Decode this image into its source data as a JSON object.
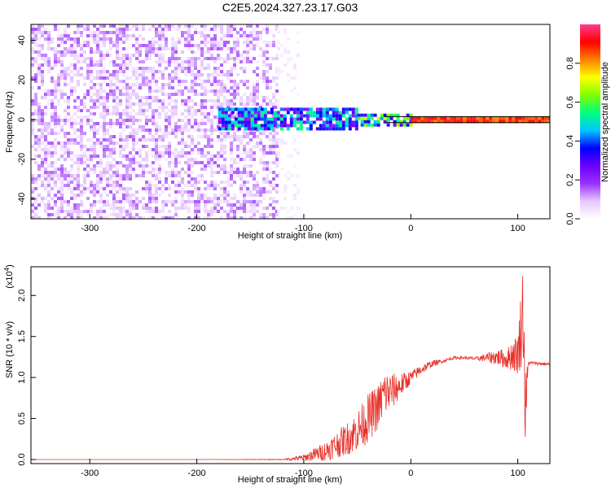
{
  "title": "C2E5.2024.327.23.17.G03",
  "chart_data": [
    {
      "type": "heatmap",
      "xlabel": "Height of straight line (km)",
      "ylabel": "Frequency (Hz)",
      "xlim": [
        -355,
        130
      ],
      "ylim": [
        -50,
        48
      ],
      "xticks": [
        -300,
        -200,
        -100,
        0,
        100
      ],
      "yticks": [
        -40,
        -20,
        0,
        20,
        40
      ],
      "colorbar": {
        "label": "Normalized spectral amplitude",
        "range": [
          0.0,
          1.0
        ],
        "ticks": [
          0.0,
          0.2,
          0.4,
          0.6,
          0.8
        ],
        "colormap": [
          "#ffffff",
          "#e6c8ff",
          "#9b30ff",
          "#6a00ff",
          "#0000ff",
          "#00c8ff",
          "#00ff80",
          "#80ff00",
          "#ffff00",
          "#ff8000",
          "#ff0000",
          "#ff3c8c"
        ]
      },
      "regions": [
        {
          "x_range": [
            -355,
            -125
          ],
          "freq_range": [
            -50,
            48
          ],
          "amplitude": 0.08,
          "pattern": "noise"
        },
        {
          "x_range": [
            -125,
            -105
          ],
          "freq_range": [
            -50,
            48
          ],
          "amplitude": 0.03,
          "pattern": "sparse-noise"
        },
        {
          "x_range": [
            -180,
            -50
          ],
          "freq_range": [
            -4,
            6
          ],
          "amplitude": 0.4,
          "pattern": "band"
        },
        {
          "x_range": [
            -50,
            0
          ],
          "freq_range": [
            -2,
            3
          ],
          "amplitude": 0.5,
          "pattern": "band"
        },
        {
          "x_range": [
            0,
            130
          ],
          "freq_range": [
            -1.5,
            1.5
          ],
          "amplitude": 0.9,
          "pattern": "line"
        }
      ]
    },
    {
      "type": "line",
      "xlabel": "Height of straight line (km)",
      "ylabel": "SNR (10 * v/v)",
      "y_multiplier": "(x10",
      "y_multiplier_exp": "4",
      "xlim": [
        -355,
        130
      ],
      "ylim": [
        -0.05,
        2.35
      ],
      "xticks": [
        -300,
        -200,
        -100,
        0,
        100
      ],
      "yticks": [
        0.0,
        0.5,
        1.0,
        1.5,
        2.0
      ],
      "series": [
        {
          "color": "#e8302a",
          "x": [
            -355,
            -300,
            -200,
            -120,
            -100,
            -80,
            -60,
            -50,
            -40,
            -30,
            -25,
            -20,
            -15,
            -10,
            -5,
            0,
            10,
            20,
            30,
            40,
            50,
            60,
            70,
            80,
            90,
            95,
            100,
            103,
            105,
            107,
            110,
            120,
            130
          ],
          "y": [
            0.0,
            0.0,
            0.0,
            0.0,
            0.02,
            0.1,
            0.25,
            0.35,
            0.5,
            0.65,
            0.8,
            0.82,
            0.85,
            0.9,
            0.95,
            1.0,
            1.1,
            1.17,
            1.2,
            1.24,
            1.24,
            1.23,
            1.24,
            1.25,
            1.22,
            1.28,
            1.28,
            1.6,
            1.9,
            0.6,
            1.18,
            1.17,
            1.16
          ],
          "spread": [
            0.0,
            0.0,
            0.0,
            0.005,
            0.04,
            0.12,
            0.2,
            0.25,
            0.3,
            0.28,
            0.3,
            0.25,
            0.2,
            0.15,
            0.12,
            0.08,
            0.06,
            0.04,
            0.02,
            0.02,
            0.02,
            0.02,
            0.05,
            0.1,
            0.12,
            0.2,
            0.25,
            0.5,
            0.6,
            0.5,
            0.02,
            0.02,
            0.02
          ]
        }
      ]
    }
  ]
}
